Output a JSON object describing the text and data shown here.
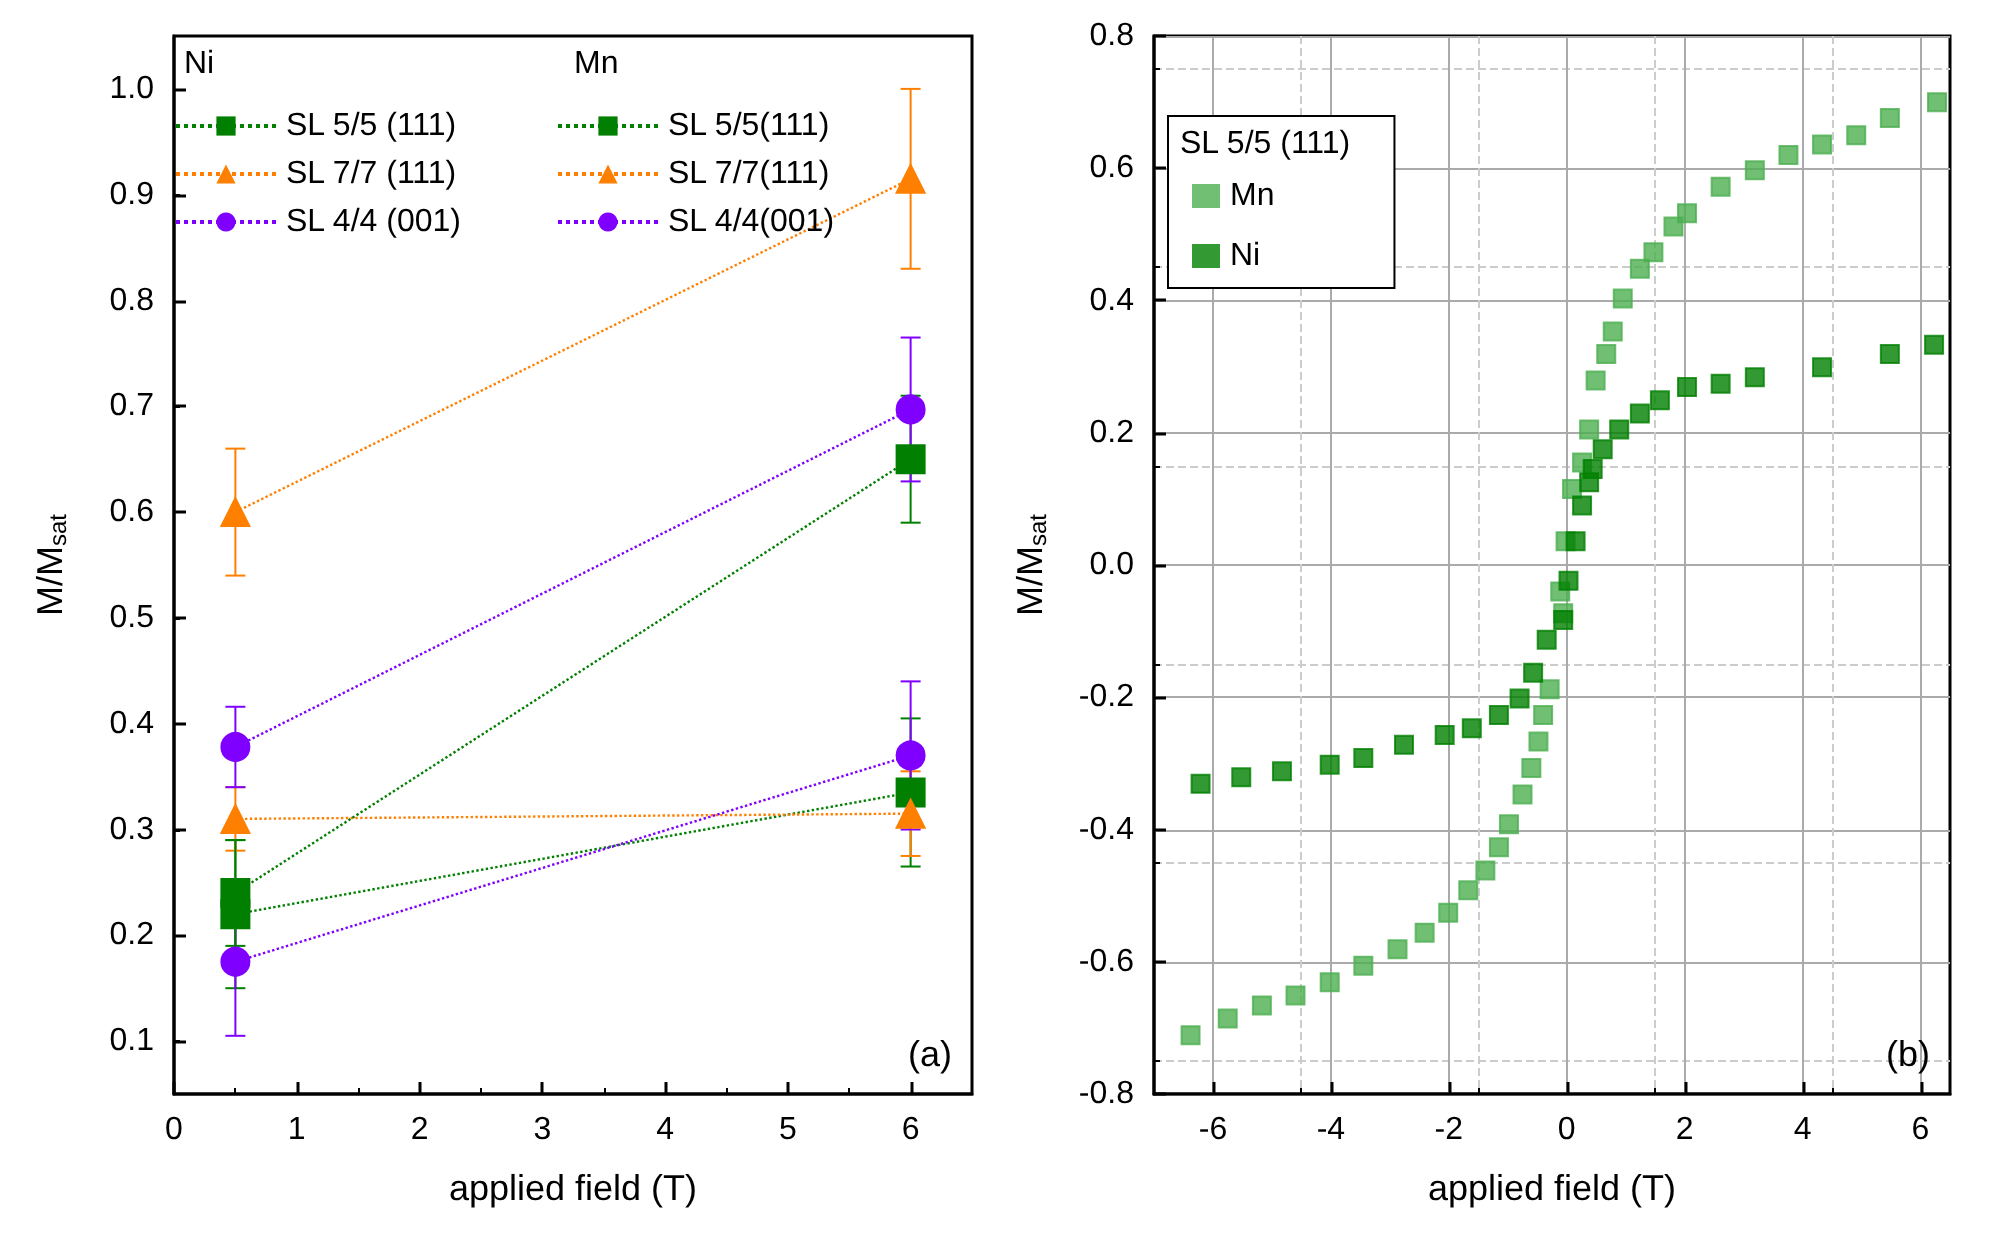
{
  "chart_data": [
    {
      "type": "line",
      "xlabel": "applied field (T)",
      "ylabel": "M/M$_{sat}$",
      "xlim": [
        0,
        6.5
      ],
      "xticks": [
        0,
        1,
        2,
        3,
        4,
        5,
        6
      ],
      "ylim": [
        0.05,
        1.05
      ],
      "yticks": [
        0.1,
        0.2,
        0.3,
        0.4,
        0.5,
        0.6,
        0.7,
        0.8,
        0.9,
        {
          "value": 1,
          "label": "1.0"
        }
      ],
      "grid": false,
      "legend": "top left",
      "line_style": "dotted",
      "annotations": [
        "Ni",
        "Mn",
        "(a)"
      ],
      "series": [
        {
          "name": "SL 5/5 (111)",
          "color": "#007f00",
          "marker": "square",
          "x": [
            0.5,
            6
          ],
          "values": [
            0.22,
            0.335
          ],
          "errors": [
            0.07,
            0.07
          ]
        },
        {
          "name": "SL 7/7 (111)",
          "color": "#ff7f00",
          "marker": "triangle",
          "x": [
            0.5,
            6
          ],
          "values": [
            0.31,
            0.315
          ],
          "errors": [
            0.03,
            0.04
          ]
        },
        {
          "name": "SL 4/4 (001)",
          "color": "#7f00ff",
          "marker": "circle",
          "x": [
            0.5,
            6
          ],
          "values": [
            0.175,
            0.37
          ],
          "errors": [
            0.07,
            0.07
          ]
        },
        {
          "name": "SL 5/5(111)",
          "color": "#007f00",
          "marker": "square",
          "x": [
            0.5,
            6
          ],
          "values": [
            0.24,
            0.65
          ],
          "errors": [
            0.05,
            0.06
          ]
        },
        {
          "name": "SL 7/7(111)",
          "color": "#ff7f00",
          "marker": "triangle",
          "x": [
            0.5,
            6
          ],
          "values": [
            0.6,
            0.915
          ],
          "errors": [
            0.06,
            0.085
          ]
        },
        {
          "name": "SL 4/4(001)",
          "color": "#7f00ff",
          "marker": "circle",
          "x": [
            0.5,
            6
          ],
          "values": [
            0.378,
            0.697
          ],
          "errors": [
            0.038,
            0.068
          ]
        }
      ]
    },
    {
      "type": "scatter",
      "xlabel": "applied field (T)",
      "ylabel": "M/M$_{sat}$",
      "xlim": [
        -7,
        6.5
      ],
      "xticks": [
        -6,
        -4,
        -2,
        0,
        2,
        4,
        6
      ],
      "ylim": [
        -0.8,
        0.8
      ],
      "yticks": [
        -0.8,
        -0.6,
        -0.4,
        -0.2,
        {
          "value": 0,
          "label": "0.0"
        },
        0.2,
        0.4,
        0.6,
        0.8
      ],
      "grid": true,
      "legend": "top left",
      "legend_title": "SL 5/5 (111)",
      "marker": "square",
      "annotations": [
        "(b)"
      ],
      "series": [
        {
          "name": "Mn",
          "color": "#4caf50",
          "x": [
            -6.38,
            -5.75,
            -5.17,
            -4.6,
            -4.02,
            -3.45,
            -2.87,
            -2.41,
            -2.01,
            -1.67,
            -1.38,
            -1.15,
            -0.98,
            -0.75,
            -0.6,
            -0.48,
            -0.4,
            -0.29,
            -0.11,
            -0.06,
            -0.02,
            0.09,
            0.26,
            0.38,
            0.49,
            0.67,
            0.78,
            0.95,
            1.24,
            1.47,
            1.81,
            2.04,
            2.61,
            3.19,
            3.76,
            4.33,
            4.91,
            5.48,
            6.28
          ],
          "values": [
            -0.711,
            -0.686,
            -0.666,
            -0.651,
            -0.631,
            -0.606,
            -0.581,
            -0.556,
            -0.526,
            -0.492,
            -0.462,
            -0.427,
            -0.392,
            -0.347,
            -0.307,
            -0.267,
            -0.227,
            -0.188,
            -0.04,
            -0.073,
            0.036,
            0.115,
            0.155,
            0.205,
            0.279,
            0.319,
            0.353,
            0.403,
            0.448,
            0.473,
            0.512,
            0.532,
            0.572,
            0.597,
            0.62,
            0.636,
            0.65,
            0.676,
            0.7
          ]
        },
        {
          "name": "Ni",
          "color": "#007f00",
          "x": [
            -6.21,
            -5.52,
            -4.83,
            -4.02,
            -3.45,
            -2.76,
            -2.07,
            -1.61,
            -1.15,
            -0.8,
            -0.57,
            -0.34,
            -0.06,
            0.03,
            0.15,
            0.26,
            0.38,
            0.44,
            0.61,
            0.89,
            1.24,
            1.58,
            2.04,
            2.61,
            3.19,
            4.33,
            5.48,
            6.23
          ],
          "values": [
            -0.331,
            -0.321,
            -0.312,
            -0.302,
            -0.292,
            -0.272,
            -0.257,
            -0.247,
            -0.227,
            -0.202,
            -0.163,
            -0.113,
            -0.083,
            -0.024,
            0.036,
            0.09,
            0.125,
            0.145,
            0.175,
            0.205,
            0.229,
            0.249,
            0.269,
            0.274,
            0.284,
            0.299,
            0.319,
            0.333
          ]
        }
      ]
    }
  ]
}
